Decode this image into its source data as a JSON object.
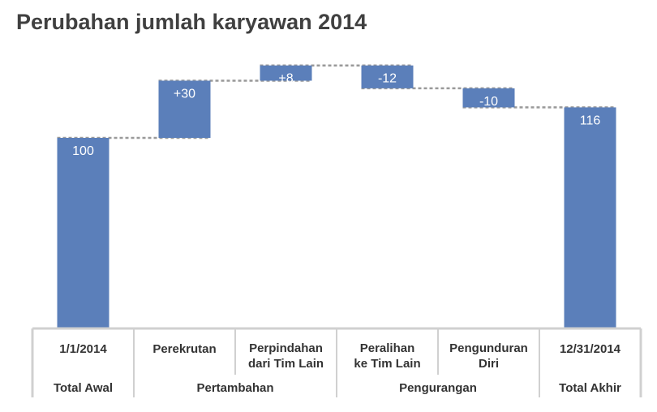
{
  "chart_data": {
    "type": "bar",
    "subtype": "waterfall",
    "title": "Perubahan jumlah karyawan 2014",
    "categories": [
      [
        "1/1/2014"
      ],
      [
        "Perekrutan"
      ],
      [
        "Perpindahan",
        "dari Tim Lain"
      ],
      [
        "Peralihan",
        "ke Tim Lain"
      ],
      [
        "Pengunduran",
        "Diri"
      ],
      [
        "12/31/2014"
      ]
    ],
    "values": [
      100,
      30,
      8,
      -12,
      -10,
      116
    ],
    "data_labels": [
      "100",
      "+30",
      "+8",
      "-12",
      "-10",
      "116"
    ],
    "bar_kinds": [
      "total",
      "delta",
      "delta",
      "delta",
      "delta",
      "total"
    ],
    "groups": [
      {
        "label": "Total Awal",
        "span": [
          0,
          0
        ]
      },
      {
        "label": "Pertambahan",
        "span": [
          1,
          2
        ]
      },
      {
        "label": "Pengurangan",
        "span": [
          3,
          4
        ]
      },
      {
        "label": "Total Akhir",
        "span": [
          5,
          5
        ]
      }
    ],
    "ylim": [
      0,
      138
    ],
    "connector_lines": "dashed",
    "grid": false,
    "legend": "none",
    "colors": {
      "bar": "#5b7fba",
      "connector": "#999999",
      "label_inside": "#ffffff",
      "axis_text": "#333333",
      "separator": "#d0d0d0"
    }
  }
}
